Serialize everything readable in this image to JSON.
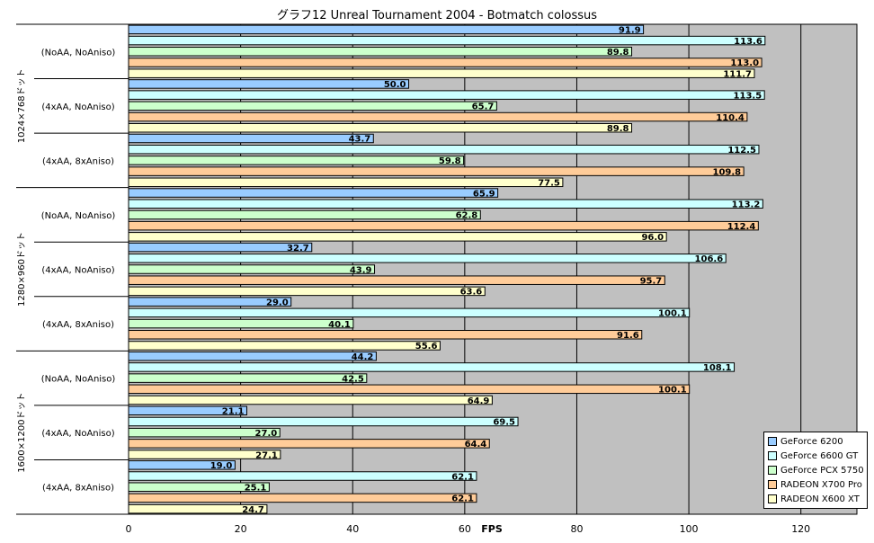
{
  "chart_data": {
    "type": "bar",
    "orientation": "horizontal",
    "title": "グラフ12  Unreal Tournament 2004 - Botmatch colossus",
    "xlabel": "FPS",
    "xlim": [
      0,
      130
    ],
    "xticks": [
      0,
      20,
      40,
      60,
      80,
      100,
      120
    ],
    "grid": true,
    "legend_position": "bottom-right",
    "groups": [
      {
        "name": "1024×768ドット",
        "categories": [
          "(NoAA, NoAniso)",
          "(4xAA, NoAniso)",
          "(4xAA, 8xAniso)"
        ]
      },
      {
        "name": "1280×960ドット",
        "categories": [
          "(NoAA, NoAniso)",
          "(4xAA, NoAniso)",
          "(4xAA, 8xAniso)"
        ]
      },
      {
        "name": "1600×1200ドット",
        "categories": [
          "(NoAA, NoAniso)",
          "(4xAA, NoAniso)",
          "(4xAA, 8xAniso)"
        ]
      }
    ],
    "series": [
      {
        "name": "GeForce 6200",
        "color": "#99ccff",
        "values": [
          91.9,
          50.0,
          43.7,
          65.9,
          32.7,
          29.0,
          44.2,
          21.1,
          19.0
        ],
        "labels": [
          "91.9",
          "50.0",
          "43.7",
          "65.9",
          "32.7",
          "29.0",
          "44.2",
          "21.1",
          "19.0"
        ]
      },
      {
        "name": "GeForce 6600 GT",
        "color": "#ccffff",
        "values": [
          113.6,
          113.5,
          112.5,
          113.2,
          106.6,
          100.1,
          108.1,
          69.5,
          62.1
        ],
        "labels": [
          "113.6",
          "113.5",
          "112.5",
          "113.2",
          "106.6",
          "100.1",
          "108.1",
          "69.5",
          "62.1"
        ]
      },
      {
        "name": "GeForce PCX 5750",
        "color": "#ccffcc",
        "values": [
          89.8,
          65.7,
          59.8,
          62.8,
          43.9,
          40.1,
          42.5,
          27.0,
          25.1
        ],
        "labels": [
          "89.8",
          "65.7",
          "59.8",
          "62.8",
          "43.9",
          "40.1",
          "42.5",
          "27.0",
          "25.1"
        ]
      },
      {
        "name": "RADEON X700 Pro",
        "color": "#ffcc99",
        "values": [
          113.0,
          110.4,
          109.8,
          112.4,
          95.7,
          91.6,
          100.1,
          64.4,
          62.1
        ],
        "labels": [
          "113.0",
          "110.4",
          "109.8",
          "112.4",
          "95.7",
          "91.6",
          "100.1",
          "64.4",
          "62.1"
        ]
      },
      {
        "name": "RADEON X600 XT",
        "color": "#ffffcc",
        "values": [
          111.7,
          89.8,
          77.5,
          96.0,
          63.6,
          55.6,
          64.9,
          27.1,
          24.7
        ],
        "labels": [
          "111.7",
          "89.8",
          "77.5",
          "96.0",
          "63.6",
          "55.6",
          "64.9",
          "27.1",
          "24.7"
        ]
      }
    ]
  },
  "colors": {
    "plot_background": "#c0c0c0",
    "bar_outline": "#000000"
  }
}
